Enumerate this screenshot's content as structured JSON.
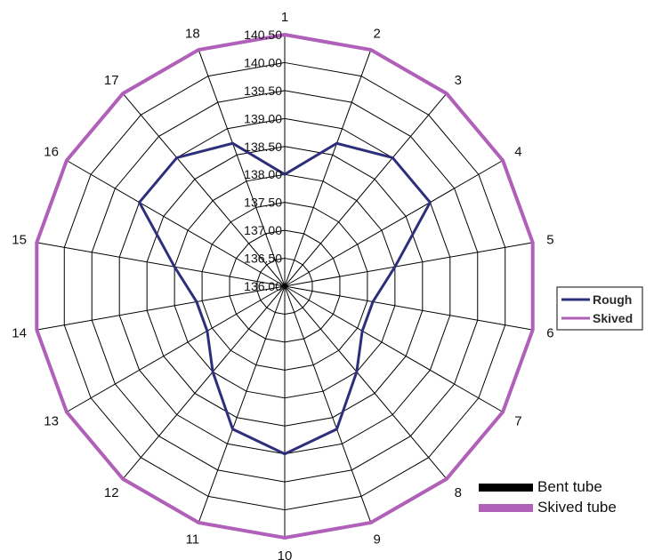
{
  "chart_data": {
    "type": "radar",
    "categories": [
      "1",
      "2",
      "3",
      "4",
      "5",
      "6",
      "7",
      "8",
      "9",
      "10",
      "11",
      "12",
      "13",
      "14",
      "15",
      "16",
      "17",
      "18"
    ],
    "radial_ticks": [
      "136.00",
      "136.50",
      "137.00",
      "137.50",
      "138.00",
      "138.50",
      "139.00",
      "139.50",
      "140.00",
      "140.50"
    ],
    "rlim": [
      136.0,
      140.5
    ],
    "series": [
      {
        "name": "Rough",
        "color": "#2e2f7a",
        "values": [
          138.0,
          138.72,
          139.0,
          139.0,
          138.0,
          137.6,
          137.6,
          138.0,
          138.72,
          139.0,
          138.72,
          138.0,
          137.6,
          137.6,
          138.0,
          139.0,
          139.0,
          138.72
        ]
      },
      {
        "name": "Skived",
        "color": "#b060b8",
        "values": [
          140.5,
          140.5,
          140.5,
          140.5,
          140.5,
          140.5,
          140.5,
          140.5,
          140.5,
          140.5,
          140.5,
          140.5,
          140.5,
          140.5,
          140.5,
          140.5,
          140.5,
          140.5
        ]
      }
    ],
    "legend_box": {
      "position": "right",
      "entries": [
        {
          "label": "Rough",
          "color": "#2e2f7a"
        },
        {
          "label": "Skived",
          "color": "#b060b8"
        }
      ]
    },
    "legend_secondary": {
      "position": "bottom-right",
      "entries": [
        {
          "label": "Bent tube",
          "color": "#000000"
        },
        {
          "label": "Skived tube",
          "color": "#b060b8"
        }
      ]
    },
    "grid": true
  }
}
